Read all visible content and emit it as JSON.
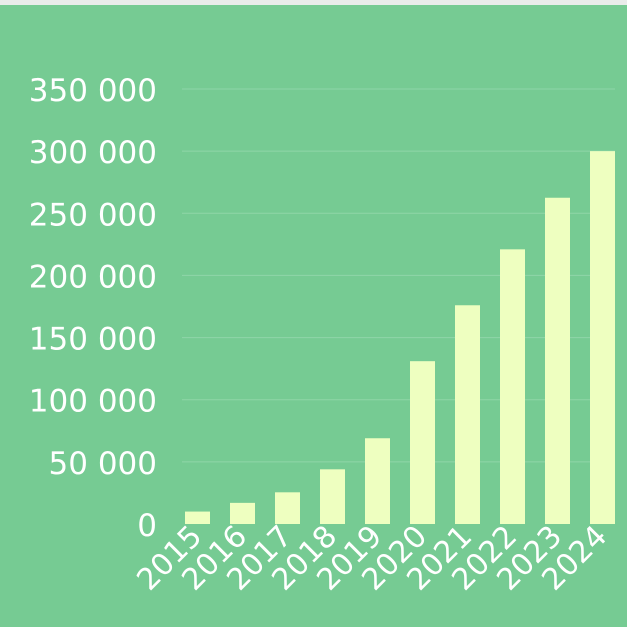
{
  "chart_data": {
    "type": "bar",
    "categories": [
      "2015",
      "2016",
      "2017",
      "2018",
      "2019",
      "2020",
      "2021",
      "2022",
      "2023",
      "2024"
    ],
    "values": [
      10000,
      17000,
      25500,
      44000,
      69000,
      131000,
      176000,
      221000,
      262500,
      300000
    ],
    "y_ticks": [
      "0",
      "50 000",
      "100 000",
      "150 000",
      "200 000",
      "250 000",
      "300 000",
      "350 000"
    ],
    "y_tick_values": [
      0,
      50000,
      100000,
      150000,
      200000,
      250000,
      300000,
      350000
    ],
    "ylim": [
      0,
      350000
    ],
    "title": "",
    "xlabel": "",
    "ylabel": "",
    "grid": true,
    "legend": "none"
  },
  "colors": {
    "background": "#76cb93",
    "top_band": "#e9ecea",
    "bar": "#eeffc0",
    "grid": "#8fd6a8",
    "text": "#ffffff"
  }
}
